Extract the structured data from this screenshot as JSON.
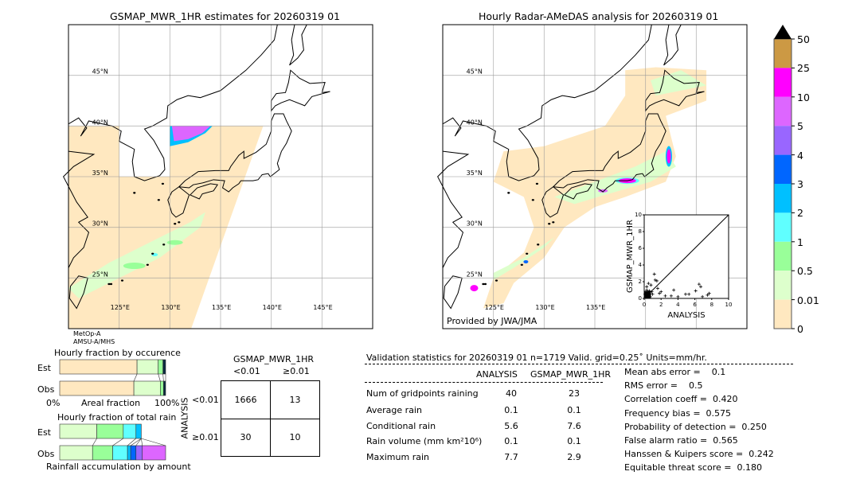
{
  "left_map": {
    "title": "GSMAP_MWR_1HR estimates for 20260319 01",
    "sensor_line1": "MetOp-A",
    "sensor_line2": "AMSU-A/MHS"
  },
  "right_map": {
    "title": "Hourly Radar-AMeDAS analysis for 20260319 01",
    "credit": "Provided by JWA/JMA"
  },
  "lat_labels": [
    "45°N",
    "40°N",
    "35°N",
    "30°N",
    "25°N"
  ],
  "lon_labels": [
    "125°E",
    "130°E",
    "135°E",
    "140°E",
    "145°E"
  ],
  "colorbar": {
    "labels": [
      "50",
      "25",
      "10",
      "5",
      "4",
      "3",
      "2",
      "1",
      "0.5",
      "0.01",
      "0"
    ],
    "colors": [
      "#cc9944",
      "#ff00ff",
      "#dd66ff",
      "#9966ff",
      "#0066ff",
      "#00c0ff",
      "#60ffff",
      "#99ff99",
      "#ddffcc",
      "#ffe8c0"
    ],
    "extend_color": "#000000"
  },
  "occurrence": {
    "title": "Hourly fraction by occurence",
    "est_label": "Est",
    "obs_label": "Obs",
    "xlabel": "Areal fraction",
    "x_min_label": "0%",
    "x_max_label": "100%"
  },
  "total_rain": {
    "title": "Hourly fraction of total rain",
    "est_label": "Est",
    "obs_label": "Obs",
    "xlabel": "Rainfall accumulation by amount"
  },
  "contingency": {
    "col_header": "GSMAP_MWR_1HR",
    "col_lt": "<0.01",
    "col_ge": "≥0.01",
    "row_header": "ANALYSIS",
    "row_lt": "<0.01",
    "row_ge": "≥0.01",
    "cells": [
      [
        "1666",
        "13"
      ],
      [
        "30",
        "10"
      ]
    ]
  },
  "stats": {
    "title": "Validation statistics for 20260319 01  n=1719 Valid. grid=0.25˚ Units=mm/hr.",
    "col_analysis": "ANALYSIS",
    "col_gsmap": "GSMAP_MWR_1HR",
    "rows": [
      {
        "label": "Num of gridpoints raining",
        "analysis": "40",
        "gsmap": "23"
      },
      {
        "label": "Average rain",
        "analysis": "0.1",
        "gsmap": "0.1"
      },
      {
        "label": "Conditional rain",
        "analysis": "5.6",
        "gsmap": "7.6"
      },
      {
        "label": "Rain volume (mm km²10⁶)",
        "analysis": "0.1",
        "gsmap": "0.1"
      },
      {
        "label": "Maximum rain",
        "analysis": "7.7",
        "gsmap": "2.9"
      }
    ],
    "scores": [
      "Mean abs error =    0.1",
      "RMS error =    0.5",
      "Correlation coeff =  0.420",
      "Frequency bias =  0.575",
      "Probability of detection =  0.250",
      "False alarm ratio =  0.565",
      "Hanssen & Kuipers score =  0.242",
      "Equitable threat score =  0.180"
    ]
  },
  "chart_data": [
    {
      "type": "bar",
      "title": "Hourly fraction by occurence",
      "xlabel": "Areal fraction",
      "categories": [
        "Est",
        "Obs"
      ],
      "series": [
        {
          "values": [
            0.73,
            0.7
          ],
          "color": "#ffe8c0"
        },
        {
          "values": [
            0.2,
            0.25
          ],
          "color": "#ddffcc"
        },
        {
          "values": [
            0.045,
            0.03
          ],
          "color": "#99ff99"
        },
        {
          "values": [
            0.025,
            0.02
          ],
          "color": "#0a2a40"
        }
      ]
    },
    {
      "type": "bar",
      "title": "Hourly fraction of total rain",
      "xlabel": "Rainfall accumulation by amount",
      "categories": [
        "Est",
        "Obs"
      ],
      "series": [
        {
          "values": [
            0.35,
            0.31
          ],
          "color": "#ddffcc"
        },
        {
          "values": [
            0.25,
            0.19
          ],
          "color": "#99ff99"
        },
        {
          "values": [
            0.12,
            0.14
          ],
          "color": "#60ffff"
        },
        {
          "values": [
            0.05,
            0.03
          ],
          "color": "#00c0ff"
        },
        {
          "values": [
            0,
            0.05
          ],
          "color": "#0066ff"
        },
        {
          "values": [
            0,
            0.06
          ],
          "color": "#9966ff"
        },
        {
          "values": [
            0,
            0.22
          ],
          "color": "#dd66ff"
        }
      ]
    },
    {
      "type": "scatter",
      "xlabel": "ANALYSIS",
      "ylabel": "GSMAP_MWR_1HR",
      "xlim": [
        0,
        10
      ],
      "ylim": [
        0,
        10
      ],
      "xticks": [
        "0",
        "2",
        "4",
        "6",
        "8",
        "10"
      ],
      "yticks": [
        "0",
        "2",
        "4",
        "6",
        "8",
        "10"
      ],
      "points": [
        [
          1.2,
          2.9
        ],
        [
          1.3,
          2.2
        ],
        [
          1.5,
          2.1
        ],
        [
          0.5,
          1.8
        ],
        [
          0.8,
          1.6
        ],
        [
          0.3,
          1.4
        ],
        [
          1.6,
          1.2
        ],
        [
          2.0,
          0.8
        ],
        [
          1.8,
          0.6
        ],
        [
          3.5,
          1.0
        ],
        [
          3.2,
          0.3
        ],
        [
          4.0,
          0.2
        ],
        [
          4.9,
          0.5
        ],
        [
          5.3,
          0.5
        ],
        [
          6.1,
          0.9
        ],
        [
          6.5,
          1.7
        ],
        [
          6.7,
          1.4
        ],
        [
          7.5,
          0.4
        ],
        [
          7.7,
          0.6
        ],
        [
          6.9,
          0.2
        ],
        [
          2.5,
          0.3
        ],
        [
          1.0,
          0.5
        ],
        [
          0.6,
          0.9
        ],
        [
          0.4,
          0.6
        ],
        [
          0.2,
          0.3
        ],
        [
          0.7,
          0.2
        ],
        [
          0.9,
          0.8
        ],
        [
          0.3,
          1.0
        ],
        [
          0.1,
          0.5
        ],
        [
          0.5,
          0.4
        ]
      ]
    }
  ]
}
